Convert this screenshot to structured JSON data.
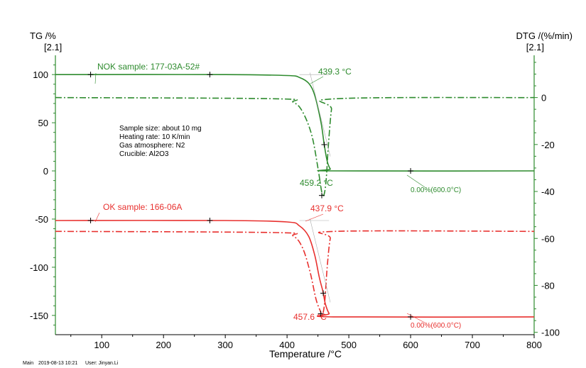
{
  "colors": {
    "axis_left": "#2e8b2e",
    "axis_right": "#2e8b2e",
    "nok": "#2e8b2e",
    "ok": "#e8302e",
    "text": "#000000"
  },
  "left_axis": {
    "title": "TG /%",
    "subtitle": "[2.1]",
    "ticks": [
      100,
      50,
      0,
      -50,
      -100,
      -150
    ]
  },
  "right_axis": {
    "title": "DTG /(%/min)",
    "subtitle": "[2.1]",
    "ticks": [
      0,
      -20,
      -40,
      -60,
      -80,
      -100
    ]
  },
  "x_axis": {
    "title": "Temperature /°C",
    "ticks": [
      100,
      200,
      300,
      400,
      500,
      600,
      700,
      800
    ]
  },
  "info": {
    "line1": "Sample size: about 10 mg",
    "line2": "Heating rate: 10 K/min",
    "line3": "Gas atmosphere: N2",
    "line4": "Crucible: Al2O3"
  },
  "footer": {
    "main": "Main",
    "datetime": "2019-08-13 10:21",
    "user": "User: Jinyan.Li"
  },
  "chart_data": {
    "type": "line",
    "xlim": [
      25,
      800
    ],
    "ylim_left": [
      -170,
      120
    ],
    "ylim_right": [
      -101,
      18
    ],
    "xlabel": "Temperature /°C",
    "ylabel_left": "TG /%",
    "ylabel_right": "DTG /(%/min)",
    "series": [
      {
        "name": "NOK sample: 177-03A-52#",
        "color": "nok",
        "onset": 439.3,
        "peak": 459.2,
        "residual_label": "0.00%(600.0°C)",
        "onset_label": "439.3 °C",
        "peak_label": "459.2 °C",
        "tg": [
          [
            25,
            100
          ],
          [
            300,
            100
          ],
          [
            400,
            99
          ],
          [
            420,
            97
          ],
          [
            435,
            91
          ],
          [
            445,
            78
          ],
          [
            455,
            50
          ],
          [
            460,
            28
          ],
          [
            465,
            10
          ],
          [
            470,
            2
          ],
          [
            475,
            0
          ],
          [
            800,
            0
          ]
        ],
        "dtg": [
          [
            25,
            0
          ],
          [
            380,
            -0.5
          ],
          [
            410,
            -2
          ],
          [
            425,
            -6
          ],
          [
            440,
            -16
          ],
          [
            450,
            -30
          ],
          [
            456,
            -40
          ],
          [
            459,
            -42
          ],
          [
            463,
            -36
          ],
          [
            467,
            -20
          ],
          [
            472,
            -5
          ],
          [
            478,
            -0.5
          ],
          [
            800,
            0
          ]
        ]
      },
      {
        "name": "OK sample: 166-06A",
        "color": "ok",
        "onset": 437.9,
        "peak": 457.6,
        "residual_label": "0.00%(600.0°C)",
        "onset_label": "437.9 °C",
        "peak_label": "457.6 °C",
        "tg": [
          [
            25,
            -51.5
          ],
          [
            300,
            -51.5
          ],
          [
            400,
            -53
          ],
          [
            420,
            -57
          ],
          [
            435,
            -68
          ],
          [
            445,
            -88
          ],
          [
            452,
            -110
          ],
          [
            458,
            -125
          ],
          [
            462,
            -138
          ],
          [
            468,
            -148
          ],
          [
            475,
            -151.5
          ],
          [
            800,
            -151.5
          ]
        ],
        "dtg": [
          [
            25,
            -57
          ],
          [
            380,
            -57.5
          ],
          [
            410,
            -59
          ],
          [
            425,
            -64
          ],
          [
            437,
            -74
          ],
          [
            447,
            -86
          ],
          [
            454,
            -91
          ],
          [
            457,
            -93
          ],
          [
            461,
            -87
          ],
          [
            465,
            -72
          ],
          [
            470,
            -60
          ],
          [
            477,
            -57
          ],
          [
            800,
            -57
          ]
        ]
      }
    ]
  }
}
